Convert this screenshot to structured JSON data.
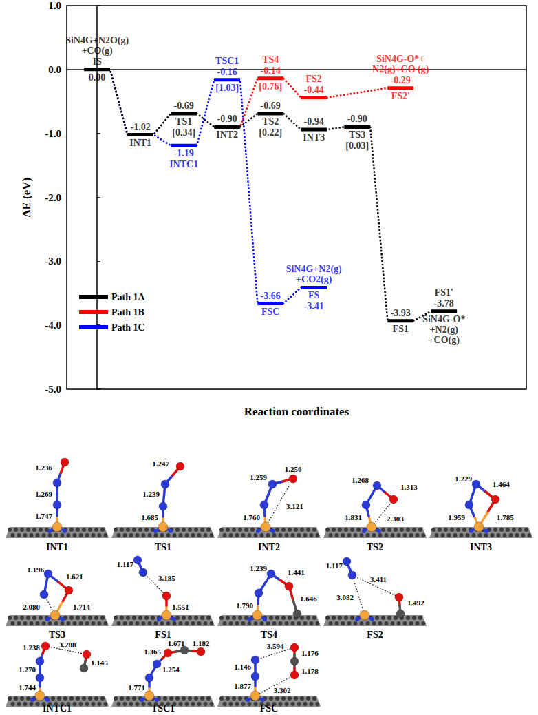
{
  "chart_data": {
    "type": "energy_profile",
    "ylabel": "ΔE (eV)",
    "xlabel": "Reaction coordinates",
    "ylim": [
      -5,
      1
    ],
    "yticks": [
      {
        "value": 1,
        "label": "1.0"
      },
      {
        "value": 0,
        "label": "0.0"
      },
      {
        "value": -1,
        "label": "-1.0"
      },
      {
        "value": -2,
        "label": "-2.0"
      },
      {
        "value": -3,
        "label": "-3.0"
      },
      {
        "value": -4,
        "label": "-4.0"
      },
      {
        "value": -5,
        "label": "-5.0"
      }
    ],
    "tick_labels": "y",
    "grid": false,
    "legend": "lower left",
    "series": [
      {
        "name": "Path 1A",
        "color": "#000000",
        "line_style": "dotted",
        "states": [
          "IS",
          "INT1",
          "TS1",
          "INT2",
          "TS2",
          "INT3",
          "TS3",
          "FS1",
          "FS1'"
        ]
      },
      {
        "name": "Path 1B",
        "color": "#ff0000",
        "line_style": "dotted",
        "states": [
          "INT2",
          "TS4",
          "FS2",
          null,
          "FS2'"
        ]
      },
      {
        "name": "Path 1C",
        "color": "#0000ff",
        "line_style": "dotted",
        "states": [
          "IS",
          "INT1",
          "INTC1",
          "TSC1",
          "FSC",
          "FS"
        ]
      }
    ],
    "levels": [
      {
        "name": "IS",
        "value": 0,
        "value_label": "0.00",
        "annotation": [
          "SiN4G+N2O(g)",
          "+CO(g)"
        ]
      },
      {
        "name": "INT1",
        "value": -1.02,
        "value_label": "-1.02"
      },
      {
        "name": "TS1",
        "value": -0.69,
        "value_label": "-0.69",
        "barrier_label": "[0.34]"
      },
      {
        "name": "INT2",
        "value": -0.9,
        "value_label": "-0.90"
      },
      {
        "name": "TS2",
        "value": -0.69,
        "value_label": "-0.69",
        "barrier_label": "[0.22]"
      },
      {
        "name": "INT3",
        "value": -0.94,
        "value_label": "-0.94"
      },
      {
        "name": "TS3",
        "value": -0.9,
        "value_label": "-0.90",
        "barrier_label": "[0.03]"
      },
      {
        "name": "FS1",
        "value": -3.93,
        "value_label": "-3.93"
      },
      {
        "name": "FS1'",
        "value": -3.78,
        "value_label": "-3.78",
        "annotation": [
          "SiN4G-O*",
          "+N2(g)",
          "+CO(g)"
        ]
      },
      {
        "name": "INTC1",
        "value": -1.19,
        "value_label": "-1.19"
      },
      {
        "name": "TSC1",
        "value": -0.16,
        "value_label": "-0.16",
        "barrier_label": "[1.03]"
      },
      {
        "name": "FSC",
        "value": -3.66,
        "value_label": "-3.66"
      },
      {
        "name": "FS",
        "value": -3.41,
        "value_label": "-3.41",
        "annotation": [
          "SiN4G+N2(g)",
          "+CO2(g)"
        ]
      },
      {
        "name": "TS4",
        "value": -0.14,
        "value_label": "-0.14",
        "barrier_label": "[0.76]"
      },
      {
        "name": "FS2",
        "value": -0.44,
        "value_label": "-0.44"
      },
      {
        "name": "FS2'",
        "value": -0.29,
        "value_label": "-0.29",
        "annotation": [
          "SiN4G-O*+",
          "N2(g)+CO (g)"
        ]
      }
    ]
  },
  "structures": [
    {
      "label": "INT1",
      "distances": [
        "1.236",
        "1.269",
        "1.747"
      ]
    },
    {
      "label": "TS1",
      "distances": [
        "1.247",
        "1.239",
        "1.685"
      ]
    },
    {
      "label": "INT2",
      "distances": [
        "1.259",
        "1.256",
        "1.760",
        "3.121"
      ]
    },
    {
      "label": "TS2",
      "distances": [
        "1.268",
        "1.313",
        "1.831",
        "2.303"
      ]
    },
    {
      "label": "INT3",
      "distances": [
        "1.229",
        "1.464",
        "1.959",
        "1.785"
      ]
    },
    {
      "label": "TS3",
      "distances": [
        "1.196",
        "1.621",
        "2.080",
        "1.714"
      ]
    },
    {
      "label": "FS1",
      "distances": [
        "1.117",
        "3.185",
        "1.551"
      ]
    },
    {
      "label": "TS4",
      "distances": [
        "1.239",
        "1.441",
        "1.790",
        "1.646"
      ]
    },
    {
      "label": "FS2",
      "distances": [
        "1.117",
        "3.411",
        "3.082",
        "1.492"
      ]
    },
    {
      "label": "INTC1",
      "distances": [
        "1.238",
        "3.288",
        "1.270",
        "1.744",
        "1.145"
      ]
    },
    {
      "label": "TSC1",
      "distances": [
        "1.671",
        "1.182",
        "1.365",
        "1.254",
        "1.771"
      ]
    },
    {
      "label": "FSC",
      "distances": [
        "3.594",
        "1.176",
        "1.146",
        "1.178",
        "1.877",
        "3.302"
      ]
    }
  ]
}
